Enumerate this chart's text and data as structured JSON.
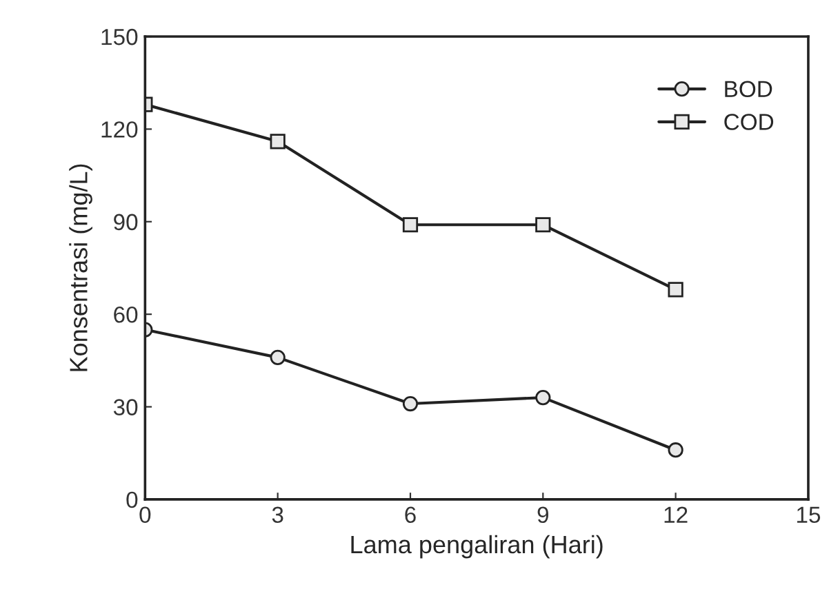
{
  "chart_data": {
    "type": "line",
    "xlabel": "Lama pengaliran (Hari)",
    "ylabel": "Konsentrasi (mg/L)",
    "x": [
      0,
      3,
      6,
      9,
      12
    ],
    "series": [
      {
        "name": "BOD",
        "color": "#222222",
        "values": [
          55,
          46,
          31,
          33,
          16
        ],
        "marker": "circle"
      },
      {
        "name": "COD",
        "color": "#222222",
        "values": [
          128,
          116,
          89,
          89,
          68
        ],
        "marker": "square"
      }
    ],
    "xlim": [
      0,
      15
    ],
    "xticks": [
      0,
      3,
      6,
      9,
      12,
      15
    ],
    "ylim": [
      0,
      150
    ],
    "yticks": [
      0,
      30,
      60,
      90,
      120,
      150
    ],
    "grid": false,
    "legend": "top right",
    "line_style": "solid"
  }
}
